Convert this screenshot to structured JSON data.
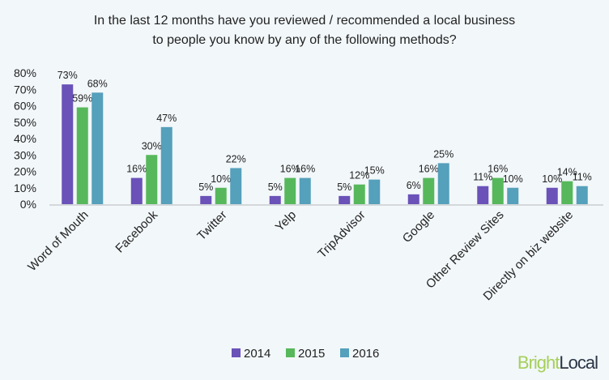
{
  "chart_data": {
    "type": "bar",
    "title_line1": "In the last 12 months have you reviewed / recommended a local business",
    "title_line2": "to people you know by any of the following methods?",
    "categories": [
      "Word of Mouth",
      "Facebook",
      "Twitter",
      "Yelp",
      "TripAdvisor",
      "Google",
      "Other Review Sites",
      "Directly on biz website"
    ],
    "series": [
      {
        "name": "2014",
        "color": "#6a52b8",
        "values": [
          73,
          16,
          5,
          5,
          5,
          6,
          11,
          10
        ]
      },
      {
        "name": "2015",
        "color": "#56b85b",
        "values": [
          59,
          30,
          10,
          16,
          12,
          16,
          16,
          14
        ]
      },
      {
        "name": "2016",
        "color": "#55a0bb",
        "values": [
          68,
          47,
          22,
          16,
          15,
          25,
          10,
          11
        ]
      }
    ],
    "ylim": [
      0,
      80
    ],
    "yticks": [
      "0%",
      "10%",
      "20%",
      "30%",
      "40%",
      "50%",
      "60%",
      "70%",
      "80%"
    ],
    "grid": false,
    "legend": "bottom",
    "value_suffix": "%"
  },
  "logo": {
    "part1": "Bright",
    "part2": "Local"
  }
}
